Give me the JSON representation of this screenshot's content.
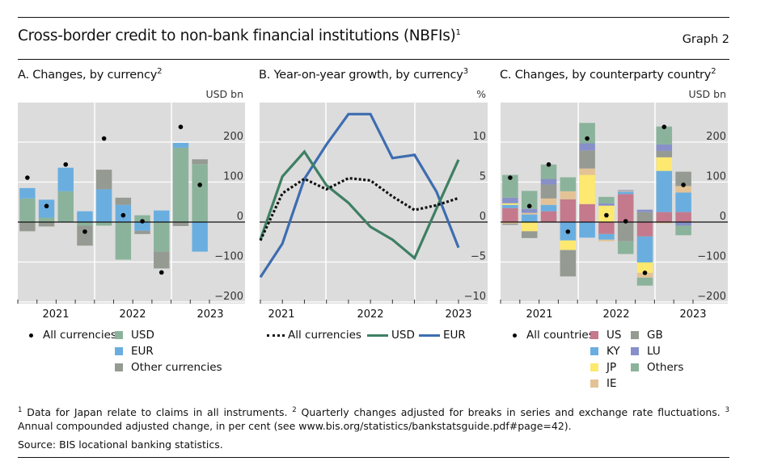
{
  "header": {
    "title": "Cross-border credit to non-bank financial institutions (NBFIs)",
    "title_sup": "1",
    "graph_number": "Graph 2"
  },
  "colors": {
    "plot_bg": "#dcdcdc",
    "USD_bar": "#8bb39b",
    "EUR_bar": "#6aaee0",
    "Other_bar": "#959a93",
    "USD_line": "#3f7f64",
    "EUR_line": "#3d6db0",
    "US": "#c47a8c",
    "KY": "#6aaee0",
    "JP": "#fde870",
    "IE": "#e3c395",
    "GB": "#959a93",
    "LU": "#8790c8",
    "Others": "#8bb39b"
  },
  "chart_data": [
    {
      "id": "A",
      "type": "bar",
      "stacked": true,
      "title": "A.  Changes, by currency",
      "title_sup": "2",
      "unit_label": "USD bn",
      "ylim": [
        -210,
        300
      ],
      "yticks": [
        -200,
        -100,
        0,
        100,
        200
      ],
      "ytick_labels": [
        "−200",
        "−100",
        "0",
        "100",
        "200"
      ],
      "year_labels": [
        "2021",
        "2022",
        "2023"
      ],
      "categories": [
        "Q1 2021",
        "Q2 2021",
        "Q3 2021",
        "Q4 2021",
        "Q1 2022",
        "Q2 2022",
        "Q3 2022",
        "Q4 2022",
        "Q1 2023",
        "Q2 2023"
      ],
      "series": [
        {
          "name": "USD",
          "values": [
            59,
            11,
            77,
            -9,
            -9,
            -94,
            17,
            -74,
            186,
            145
          ]
        },
        {
          "name": "EUR",
          "values": [
            26,
            45,
            59,
            27,
            82,
            43,
            -22,
            29,
            12,
            -74
          ]
        },
        {
          "name": "Other currencies",
          "values": [
            -23,
            -11,
            0,
            -50,
            49,
            18,
            -8,
            -42,
            -10,
            12
          ]
        }
      ],
      "total": {
        "name": "All currencies",
        "values": [
          111,
          40,
          144,
          -24,
          209,
          17,
          2,
          -126,
          238,
          93
        ]
      },
      "legend": {
        "dot": "All currencies",
        "items": [
          {
            "label": "USD",
            "color": "#8bb39b"
          },
          {
            "label": "EUR",
            "color": "#6aaee0"
          },
          {
            "label": "Other currencies",
            "color": "#959a93"
          }
        ]
      },
      "grid": true
    },
    {
      "id": "B",
      "type": "line",
      "title": "B. Year-on-year growth, by currency",
      "title_sup": "3",
      "unit_label": "%",
      "ylim": [
        -11,
        15
      ],
      "yticks": [
        -10,
        -5,
        0,
        5,
        10
      ],
      "ytick_labels": [
        "−10",
        "−5",
        "0",
        "5",
        "10"
      ],
      "year_labels": [
        "2021",
        "2022",
        "2023"
      ],
      "x": [
        "Q4 2020",
        "Q1 2021",
        "Q2 2021",
        "Q3 2021",
        "Q4 2021",
        "Q1 2022",
        "Q2 2022",
        "Q3 2022",
        "Q4 2022",
        "Q1 2023"
      ],
      "series": [
        {
          "name": "All currencies",
          "style": "dotted",
          "values": [
            -2.3,
            3.6,
            5.4,
            4.1,
            5.5,
            5.2,
            3.2,
            1.5,
            2.1,
            3.0
          ]
        },
        {
          "name": "USD",
          "style": "solid",
          "values": [
            -2.2,
            5.7,
            8.8,
            4.6,
            2.4,
            -0.6,
            -2.2,
            -4.5,
            1.7,
            7.8
          ]
        },
        {
          "name": "EUR",
          "style": "solid",
          "values": [
            -6.9,
            -2.7,
            5.4,
            9.7,
            13.5,
            13.5,
            8.0,
            8.4,
            3.8,
            -3.2
          ]
        }
      ],
      "legend": {
        "items": [
          {
            "label": "All currencies",
            "style": "dotted",
            "color": "#111111"
          },
          {
            "label": "USD",
            "style": "solid",
            "color": "#3f7f64"
          },
          {
            "label": "EUR",
            "style": "solid",
            "color": "#3d6db0"
          }
        ]
      },
      "grid": true
    },
    {
      "id": "C",
      "type": "bar",
      "stacked": true,
      "title": "C. Changes, by counterparty country",
      "title_sup": "2",
      "unit_label": "USD bn",
      "ylim": [
        -210,
        300
      ],
      "yticks": [
        -200,
        -100,
        0,
        100,
        200
      ],
      "ytick_labels": [
        "−200",
        "−100",
        "0",
        "100",
        "200"
      ],
      "year_labels": [
        "2021",
        "2022",
        "2023"
      ],
      "categories": [
        "Q1 2021",
        "Q2 2021",
        "Q3 2021",
        "Q4 2021",
        "Q1 2022",
        "Q2 2022",
        "Q3 2022",
        "Q4 2022",
        "Q1 2023",
        "Q2 2023"
      ],
      "series": [
        {
          "name": "US",
          "values": [
            35,
            0,
            27,
            57,
            45,
            -30,
            70,
            -36,
            25,
            25
          ]
        },
        {
          "name": "KY",
          "values": [
            8,
            19,
            16,
            -46,
            -39,
            -14,
            6,
            -65,
            103,
            49
          ]
        },
        {
          "name": "JP",
          "values": [
            4,
            -23,
            0,
            -24,
            73,
            41,
            0,
            -26,
            34,
            0
          ]
        },
        {
          "name": "IE",
          "values": [
            -4,
            4,
            16,
            20,
            16,
            -4,
            2,
            -12,
            -3,
            16
          ]
        },
        {
          "name": "GB",
          "values": [
            -3,
            -17,
            35,
            -66,
            45,
            0,
            -48,
            25,
            16,
            36
          ]
        },
        {
          "name": "LU",
          "values": [
            14,
            10,
            14,
            0,
            18,
            6,
            2,
            6,
            16,
            -9
          ]
        },
        {
          "name": "Others",
          "values": [
            57,
            45,
            36,
            35,
            51,
            16,
            -32,
            -20,
            45,
            -24
          ]
        }
      ],
      "total": {
        "name": "All countries",
        "values": [
          111,
          40,
          144,
          -24,
          209,
          17,
          2,
          -127,
          238,
          93
        ]
      },
      "legend": {
        "dot": "All countries",
        "items": [
          {
            "label": "US",
            "color": "#c47a8c"
          },
          {
            "label": "GB",
            "color": "#959a93"
          },
          {
            "label": "KY",
            "color": "#6aaee0"
          },
          {
            "label": "LU",
            "color": "#8790c8"
          },
          {
            "label": "JP",
            "color": "#fde870"
          },
          {
            "label": "Others",
            "color": "#8bb39b"
          },
          {
            "label": "IE",
            "color": "#e3c395"
          }
        ]
      },
      "grid": true
    }
  ],
  "footnotes": {
    "n1_sup": "1",
    "n1": " Data for Japan relate to claims in all instruments. ",
    "n2_sup": "2",
    "n2": " Quarterly changes adjusted for breaks in series and exchange rate fluctuations. ",
    "n3_sup": "3",
    "n3": " Annual compounded adjusted change, in per cent (see www.bis.org/statistics/bankstatsguide.pdf#page=42).",
    "source": "Source: BIS locational banking statistics."
  }
}
